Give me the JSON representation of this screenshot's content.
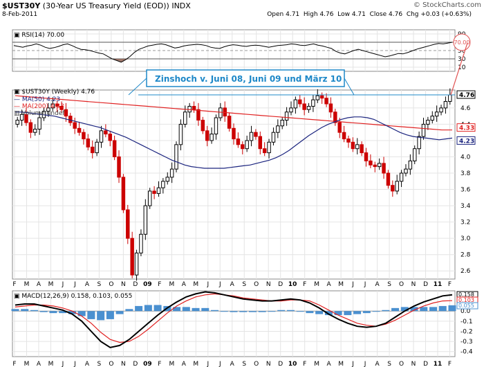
{
  "header": {
    "symbol": "$UST30Y",
    "description": "(30-Year US Treasury Yield (EOD))",
    "exchange": "INDX",
    "date": "8-Feb-2011",
    "brand": "© StockCharts.com",
    "open_label": "Open",
    "open": "4.71",
    "high_label": "High",
    "high": "4.76",
    "low_label": "Low",
    "low": "4.71",
    "close_label": "Close",
    "close": "4.76",
    "chg_label": "Chg",
    "chg": "+0.03 (+0.63%)"
  },
  "colors": {
    "up": "#000000",
    "down": "#cc0000",
    "ma50": "#1a237e",
    "ma200": "#e02020",
    "annotation": "#1e88c8",
    "histogram": "#4a90d0",
    "rsi": "#000000"
  },
  "chart_data": [
    {
      "type": "line",
      "panel": "rsi",
      "title": "RSI(14) 70.00",
      "ylim": [
        0,
        100
      ],
      "yticks": [
        "90",
        "70",
        "50",
        "30",
        "10"
      ],
      "overbought": 70,
      "oversold": 30,
      "last_value_label": "70.00",
      "values": [
        62,
        60,
        58,
        61,
        63,
        66,
        63,
        58,
        55,
        57,
        60,
        64,
        66,
        62,
        57,
        53,
        52,
        50,
        47,
        44,
        42,
        36,
        30,
        26,
        22,
        28,
        36,
        46,
        53,
        57,
        61,
        63,
        65,
        66,
        64,
        60,
        56,
        58,
        61,
        63,
        64,
        65,
        64,
        62,
        58,
        56,
        55,
        59,
        62,
        64,
        63,
        61,
        60,
        62,
        63,
        62,
        60,
        58,
        60,
        62,
        63,
        64,
        66,
        65,
        63,
        62,
        64,
        66,
        63,
        61,
        58,
        55,
        48,
        44,
        42,
        46,
        50,
        53,
        50,
        47,
        44,
        41,
        38,
        35,
        37,
        40,
        43,
        42,
        45,
        49,
        53,
        56,
        59,
        62,
        65,
        67,
        66,
        68,
        70
      ]
    },
    {
      "type": "candlestick",
      "panel": "price",
      "title": "$UST30Y (Weekly) 4.76",
      "legend": [
        "MA(50) 4.23",
        "MA(200) 4.33",
        "Volume undef"
      ],
      "ylim": [
        2.5,
        4.82
      ],
      "yticks": [
        "4.6",
        "4.4",
        "4.2",
        "4.0",
        "3.8",
        "3.6",
        "3.4",
        "3.2",
        "3.0",
        "2.8",
        "2.6"
      ],
      "price_tags": [
        "4.76",
        "4.33",
        "4.23"
      ],
      "annotation": "Zinshoch v. Juni 08, Juni 09 und März 10",
      "resistance": 4.76,
      "closes": [
        4.45,
        4.52,
        4.42,
        4.3,
        4.34,
        4.48,
        4.56,
        4.6,
        4.65,
        4.62,
        4.58,
        4.5,
        4.42,
        4.35,
        4.3,
        4.22,
        4.12,
        4.05,
        4.18,
        4.32,
        4.28,
        4.2,
        4.0,
        3.75,
        3.35,
        3.0,
        2.55,
        2.82,
        3.05,
        3.4,
        3.58,
        3.55,
        3.62,
        3.7,
        3.75,
        3.85,
        4.15,
        4.4,
        4.55,
        4.62,
        4.58,
        4.45,
        4.32,
        4.2,
        4.28,
        4.48,
        4.6,
        4.5,
        4.35,
        4.22,
        4.15,
        4.1,
        4.2,
        4.3,
        4.25,
        4.1,
        4.05,
        4.18,
        4.3,
        4.38,
        4.45,
        4.55,
        4.6,
        4.7,
        4.65,
        4.58,
        4.62,
        4.7,
        4.75,
        4.72,
        4.65,
        4.55,
        4.42,
        4.3,
        4.22,
        4.18,
        4.1,
        4.15,
        4.05,
        3.95,
        3.9,
        3.88,
        3.92,
        3.8,
        3.65,
        3.58,
        3.7,
        3.8,
        3.85,
        3.95,
        4.1,
        4.25,
        4.4,
        4.45,
        4.5,
        4.55,
        4.6,
        4.68,
        4.76
      ],
      "ma50": [
        4.55,
        4.55,
        4.54,
        4.53,
        4.52,
        4.51,
        4.5,
        4.48,
        4.46,
        4.44,
        4.42,
        4.4,
        4.38,
        4.36,
        4.33,
        4.3,
        4.27,
        4.24,
        4.2,
        4.16,
        4.12,
        4.08,
        4.04,
        4.0,
        3.96,
        3.93,
        3.9,
        3.88,
        3.87,
        3.86,
        3.86,
        3.86,
        3.86,
        3.87,
        3.88,
        3.89,
        3.9,
        3.92,
        3.94,
        3.96,
        3.99,
        4.03,
        4.08,
        4.14,
        4.2,
        4.26,
        4.31,
        4.36,
        4.4,
        4.43,
        4.46,
        4.48,
        4.49,
        4.49,
        4.48,
        4.46,
        4.42,
        4.38,
        4.34,
        4.3,
        4.27,
        4.25,
        4.24,
        4.23,
        4.22,
        4.21,
        4.22,
        4.23
      ],
      "ma200": [
        4.75,
        4.74,
        4.73,
        4.72,
        4.71,
        4.7,
        4.69,
        4.68,
        4.67,
        4.66,
        4.65,
        4.64,
        4.63,
        4.62,
        4.61,
        4.6,
        4.59,
        4.58,
        4.57,
        4.56,
        4.55,
        4.54,
        4.53,
        4.52,
        4.51,
        4.5,
        4.49,
        4.48,
        4.47,
        4.46,
        4.45,
        4.44,
        4.43,
        4.42,
        4.41,
        4.4,
        4.39,
        4.38,
        4.37,
        4.36,
        4.35,
        4.34,
        4.33,
        4.33
      ]
    },
    {
      "type": "line",
      "panel": "macd",
      "title": "MACD(12,26,9) 0.158, 0.103, 0.055",
      "ylim": [
        -0.45,
        0.2
      ],
      "yticks": [
        "0.0",
        "-0.1",
        "-0.2",
        "-0.3",
        "-0.4"
      ],
      "price_tags": [
        "0.158",
        "0.103",
        "0.055"
      ],
      "macd": [
        0.06,
        0.07,
        0.07,
        0.05,
        0.03,
        0.01,
        -0.03,
        -0.1,
        -0.2,
        -0.3,
        -0.36,
        -0.34,
        -0.28,
        -0.2,
        -0.12,
        -0.04,
        0.03,
        0.09,
        0.14,
        0.17,
        0.19,
        0.18,
        0.16,
        0.14,
        0.12,
        0.11,
        0.1,
        0.1,
        0.11,
        0.12,
        0.11,
        0.08,
        0.03,
        -0.03,
        -0.08,
        -0.12,
        -0.15,
        -0.16,
        -0.15,
        -0.12,
        -0.06,
        0.0,
        0.05,
        0.09,
        0.12,
        0.15,
        0.16
      ],
      "signal": [
        0.04,
        0.05,
        0.06,
        0.06,
        0.05,
        0.03,
        0.0,
        -0.05,
        -0.12,
        -0.21,
        -0.28,
        -0.31,
        -0.3,
        -0.25,
        -0.18,
        -0.1,
        -0.02,
        0.05,
        0.1,
        0.14,
        0.16,
        0.17,
        0.16,
        0.15,
        0.13,
        0.12,
        0.11,
        0.1,
        0.1,
        0.11,
        0.11,
        0.1,
        0.06,
        0.01,
        -0.04,
        -0.08,
        -0.12,
        -0.14,
        -0.15,
        -0.13,
        -0.09,
        -0.04,
        0.01,
        0.05,
        0.08,
        0.1,
        0.103
      ]
    }
  ],
  "x_axis_labels": [
    "F",
    "M",
    "A",
    "M",
    "J",
    "J",
    "A",
    "S",
    "O",
    "N",
    "D",
    "09",
    "F",
    "M",
    "A",
    "M",
    "J",
    "J",
    "A",
    "S",
    "O",
    "N",
    "D",
    "10",
    "F",
    "M",
    "A",
    "M",
    "J",
    "J",
    "A",
    "S",
    "O",
    "N",
    "D",
    "11",
    "F"
  ],
  "rsi_circle_label": "70.00"
}
